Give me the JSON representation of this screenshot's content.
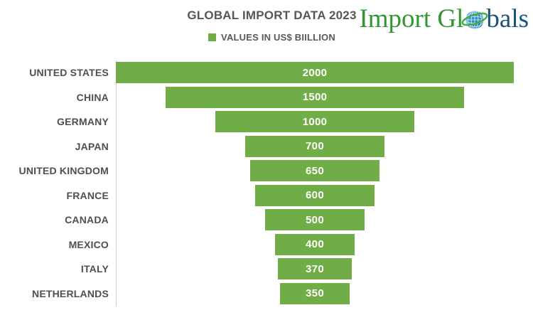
{
  "header": {
    "title": "GLOBAL IMPORT DATA 2023",
    "legend_label": "VALUES IN US$ BIILLION",
    "legend_color": "#70AD47"
  },
  "logo": {
    "prefix": "Import Gl",
    "suffix": "bals",
    "green": "#2F9632",
    "blue": "#17537C"
  },
  "chart_data": {
    "type": "bar",
    "subtype": "centered-funnel",
    "orientation": "horizontal",
    "title": "GLOBAL IMPORT DATA 2023",
    "legend": [
      "VALUES IN US$ BIILLION"
    ],
    "legend_position": "top",
    "categories": [
      "UNITED STATES",
      "CHINA",
      "GERMANY",
      "JAPAN",
      "UNITED KINGDOM",
      "FRANCE",
      "CANADA",
      "MEXICO",
      "ITALY",
      "NETHERLANDS"
    ],
    "values": [
      2000,
      1500,
      1000,
      700,
      650,
      600,
      500,
      400,
      370,
      350
    ],
    "value_range": [
      0,
      2000
    ],
    "grid": false,
    "bar_color": "#70AD47",
    "data_label_color": "#ffffff",
    "axis_line_color": "#cfcfcf"
  }
}
